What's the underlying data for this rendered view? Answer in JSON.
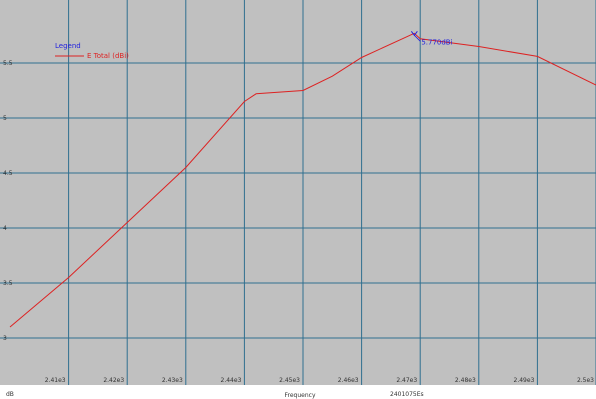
{
  "chart_data": {
    "type": "line",
    "title": "",
    "xlabel": "Frequency",
    "ylabel": "",
    "xlim": [
      2400,
      2500
    ],
    "ylim": [
      2.5,
      6.0
    ],
    "grid": true,
    "x_ticks": [
      2410,
      2420,
      2430,
      2440,
      2450,
      2460,
      2470,
      2480,
      2490,
      2500
    ],
    "x_tick_labels": [
      "2.41e3",
      "2.42e3",
      "2.43e3",
      "2.44e3",
      "2.45e3",
      "2.46e3",
      "2.47e3",
      "2.48e3",
      "2.49e3",
      "2.5e3"
    ],
    "y_ticks": [
      3.0,
      3.5,
      4.0,
      4.5,
      5.0,
      5.5
    ],
    "y_tick_labels": [
      "3",
      "3.5",
      "4",
      "4.5",
      "5",
      "5.5"
    ],
    "legend": {
      "title": "Legend",
      "placement": "top-left",
      "entries": [
        {
          "label": "E Total (dBi)",
          "color": "#dd2222"
        }
      ]
    },
    "series": [
      {
        "name": "E Total (dBi)",
        "color": "#dd2222",
        "x": [
          2400,
          2410,
          2420,
          2430,
          2440,
          2442,
          2450,
          2455,
          2460,
          2469,
          2470,
          2480,
          2490,
          2500
        ],
        "y": [
          3.1,
          3.55,
          4.05,
          4.55,
          5.15,
          5.22,
          5.25,
          5.38,
          5.55,
          5.77,
          5.72,
          5.65,
          5.56,
          5.3
        ]
      }
    ],
    "marker": {
      "x": 2469,
      "y": 5.77,
      "label": "5.770dBi",
      "color": "#2222dd"
    },
    "colors": {
      "background": "#c0c0c0",
      "grid": "#2f6f8f"
    },
    "footer": {
      "left_text": "dB",
      "center_text": "Frequency",
      "right_text": "2401075Es"
    }
  }
}
